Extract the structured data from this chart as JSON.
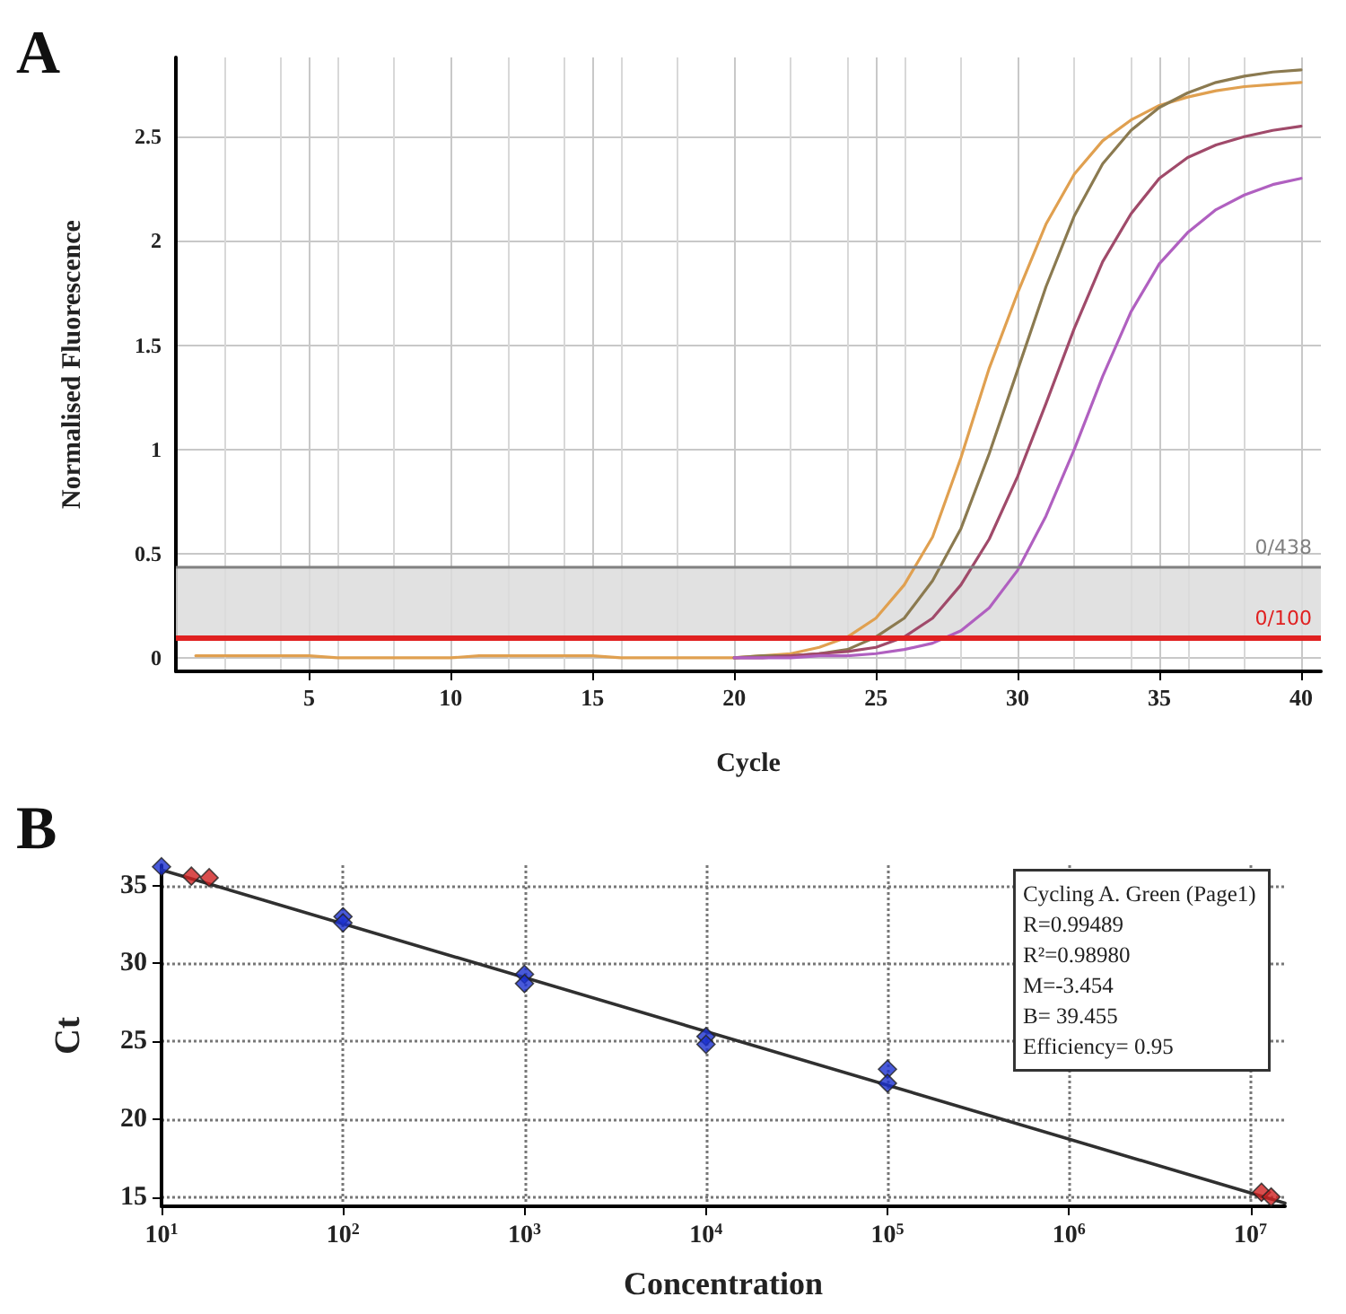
{
  "chart_data": [
    {
      "type": "line",
      "title": "A",
      "xlabel": "Cycle",
      "ylabel": "Normalised Fluorescence",
      "x": [
        1,
        2,
        3,
        4,
        5,
        6,
        7,
        8,
        9,
        10,
        11,
        12,
        13,
        14,
        15,
        16,
        17,
        18,
        19,
        20,
        21,
        22,
        23,
        24,
        25,
        26,
        27,
        28,
        29,
        30,
        31,
        32,
        33,
        34,
        35,
        36,
        37,
        38,
        39,
        40
      ],
      "xlim": [
        0.3,
        40.7
      ],
      "xticks": [
        5,
        10,
        15,
        20,
        25,
        30,
        35,
        40
      ],
      "ylim": [
        -0.065,
        2.88
      ],
      "yticks": [
        0,
        0.5,
        1,
        1.5,
        2,
        2.5
      ],
      "grid": true,
      "marker": "none",
      "series": [
        {
          "color": "#e0a050",
          "values": [
            0.01,
            0.01,
            0.01,
            0.01,
            0.01,
            0,
            0,
            0,
            0,
            0,
            0.01,
            0.01,
            0.01,
            0.01,
            0.01,
            0,
            0,
            0,
            0,
            0,
            0.01,
            0.02,
            0.05,
            0.1,
            0.19,
            0.35,
            0.58,
            0.96,
            1.39,
            1.75,
            2.08,
            2.32,
            2.48,
            2.58,
            2.65,
            2.69,
            2.72,
            2.74,
            2.75,
            2.76
          ]
        },
        {
          "color": "#8b7a50",
          "values": [
            null,
            null,
            null,
            null,
            null,
            null,
            null,
            null,
            null,
            null,
            null,
            null,
            null,
            null,
            null,
            null,
            null,
            null,
            null,
            0,
            0.01,
            0.01,
            0.02,
            0.04,
            0.1,
            0.19,
            0.37,
            0.62,
            0.98,
            1.38,
            1.78,
            2.12,
            2.37,
            2.53,
            2.64,
            2.71,
            2.76,
            2.79,
            2.81,
            2.82
          ]
        },
        {
          "color": "#a04a6a",
          "values": [
            null,
            null,
            null,
            null,
            null,
            null,
            null,
            null,
            null,
            null,
            null,
            null,
            null,
            null,
            null,
            null,
            null,
            null,
            null,
            0,
            0,
            0.01,
            0.02,
            0.03,
            0.05,
            0.1,
            0.19,
            0.35,
            0.57,
            0.87,
            1.22,
            1.58,
            1.9,
            2.13,
            2.3,
            2.4,
            2.46,
            2.5,
            2.53,
            2.55
          ]
        },
        {
          "color": "#b060c0",
          "values": [
            null,
            null,
            null,
            null,
            null,
            null,
            null,
            null,
            null,
            null,
            null,
            null,
            null,
            null,
            null,
            null,
            null,
            null,
            null,
            0,
            0,
            0,
            0.01,
            0.01,
            0.02,
            0.04,
            0.07,
            0.13,
            0.24,
            0.42,
            0.68,
            1.0,
            1.35,
            1.66,
            1.89,
            2.04,
            2.15,
            2.22,
            2.27,
            2.3
          ]
        }
      ],
      "bands": [
        {
          "axis": "y",
          "from": 0.1,
          "to": 0.438,
          "color": "#dcdcdc"
        }
      ],
      "ref_lines": [
        {
          "axis": "y",
          "value": 0.438,
          "label": "0/438",
          "color": "#808080"
        },
        {
          "axis": "y",
          "value": 0.1,
          "label": "0/100",
          "color": "#e02020"
        }
      ]
    },
    {
      "type": "scatter",
      "title": "B",
      "xlabel": "Concentration",
      "ylabel": "Ct",
      "log": "x",
      "xlim": [
        10,
        15500000
      ],
      "xticks": [
        {
          "value": 10,
          "label": "10$^{1}$"
        },
        {
          "value": 100,
          "label": "10$^{2}$"
        },
        {
          "value": 1000,
          "label": "10$^{3}$"
        },
        {
          "value": 10000,
          "label": "10$^{4}$"
        },
        {
          "value": 100000,
          "label": "10$^{5}$"
        },
        {
          "value": 1000000,
          "label": "10$^{6}$"
        },
        {
          "value": 10000000,
          "label": "10$^{7}$"
        }
      ],
      "ylim": [
        14.4,
        36.3
      ],
      "yticks": [
        15,
        20,
        25,
        30,
        35
      ],
      "grid": true,
      "series": [
        {
          "type": "line",
          "color": "#303030",
          "marker": "none",
          "x": [
            10,
            15500000
          ],
          "values": [
            36.0,
            14.6
          ]
        },
        {
          "color": "#1a2fd0",
          "marker": "diamond",
          "x": [
            10,
            100,
            100,
            1000,
            1000,
            10000,
            10000,
            100000,
            100000
          ],
          "values": [
            36.2,
            33.0,
            32.6,
            29.3,
            28.7,
            25.3,
            24.8,
            23.2,
            22.3
          ]
        },
        {
          "color": "#d02020",
          "marker": "diamond",
          "x": [
            14.6,
            18.3,
            11500000,
            13000000
          ],
          "values": [
            35.6,
            35.5,
            15.3,
            15.0
          ]
        }
      ],
      "annotations": [
        "Cycling A. Green (Page1)",
        "R=0.99489",
        "R²=0.98980",
        "M=-3.454",
        "B= 39.455",
        "Efficiency= 0.95"
      ]
    }
  ]
}
